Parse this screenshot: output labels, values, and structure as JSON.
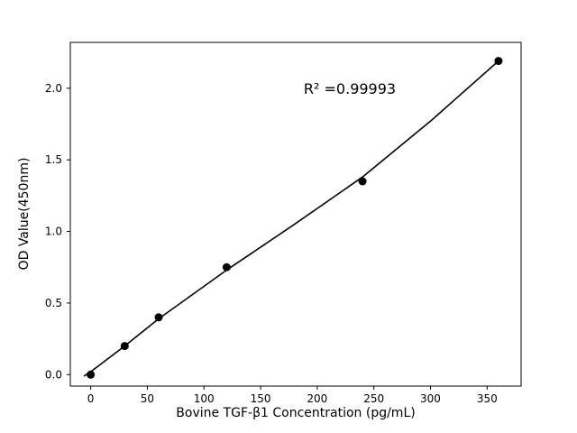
{
  "chart_data": {
    "type": "scatter",
    "title": "",
    "xlabel": "Bovine TGF-β1 Concentration (pg/mL)",
    "ylabel": "OD Value(450nm)",
    "annotation": "R² =0.99993",
    "series": [
      {
        "name": "standard-points",
        "x": [
          0,
          30,
          60,
          120,
          240,
          360
        ],
        "y": [
          0.0,
          0.2,
          0.4,
          0.75,
          1.35,
          2.19
        ]
      }
    ],
    "fit_line": [
      [
        -6,
        -0.01
      ],
      [
        0,
        0.02
      ],
      [
        30,
        0.2
      ],
      [
        60,
        0.39
      ],
      [
        120,
        0.73
      ],
      [
        180,
        1.05
      ],
      [
        240,
        1.38
      ],
      [
        300,
        1.77
      ],
      [
        360,
        2.19
      ]
    ],
    "xticks": [
      0,
      50,
      100,
      150,
      200,
      250,
      300,
      350
    ],
    "xtick_labels": [
      "0",
      "50",
      "100",
      "150",
      "200",
      "250",
      "300",
      "350"
    ],
    "yticks": [
      0,
      0.5,
      1.0,
      1.5,
      2.0
    ],
    "ytick_labels": [
      "0.0",
      "0.5",
      "1.0",
      "1.5",
      "2.0"
    ],
    "xlim": [
      -18,
      380
    ],
    "ylim": [
      -0.08,
      2.32
    ],
    "grid": false,
    "legend_position": "none",
    "marker_color": "#000000",
    "line_color": "#000000",
    "frame_color": "#000000",
    "background_color": "#ffffff"
  }
}
